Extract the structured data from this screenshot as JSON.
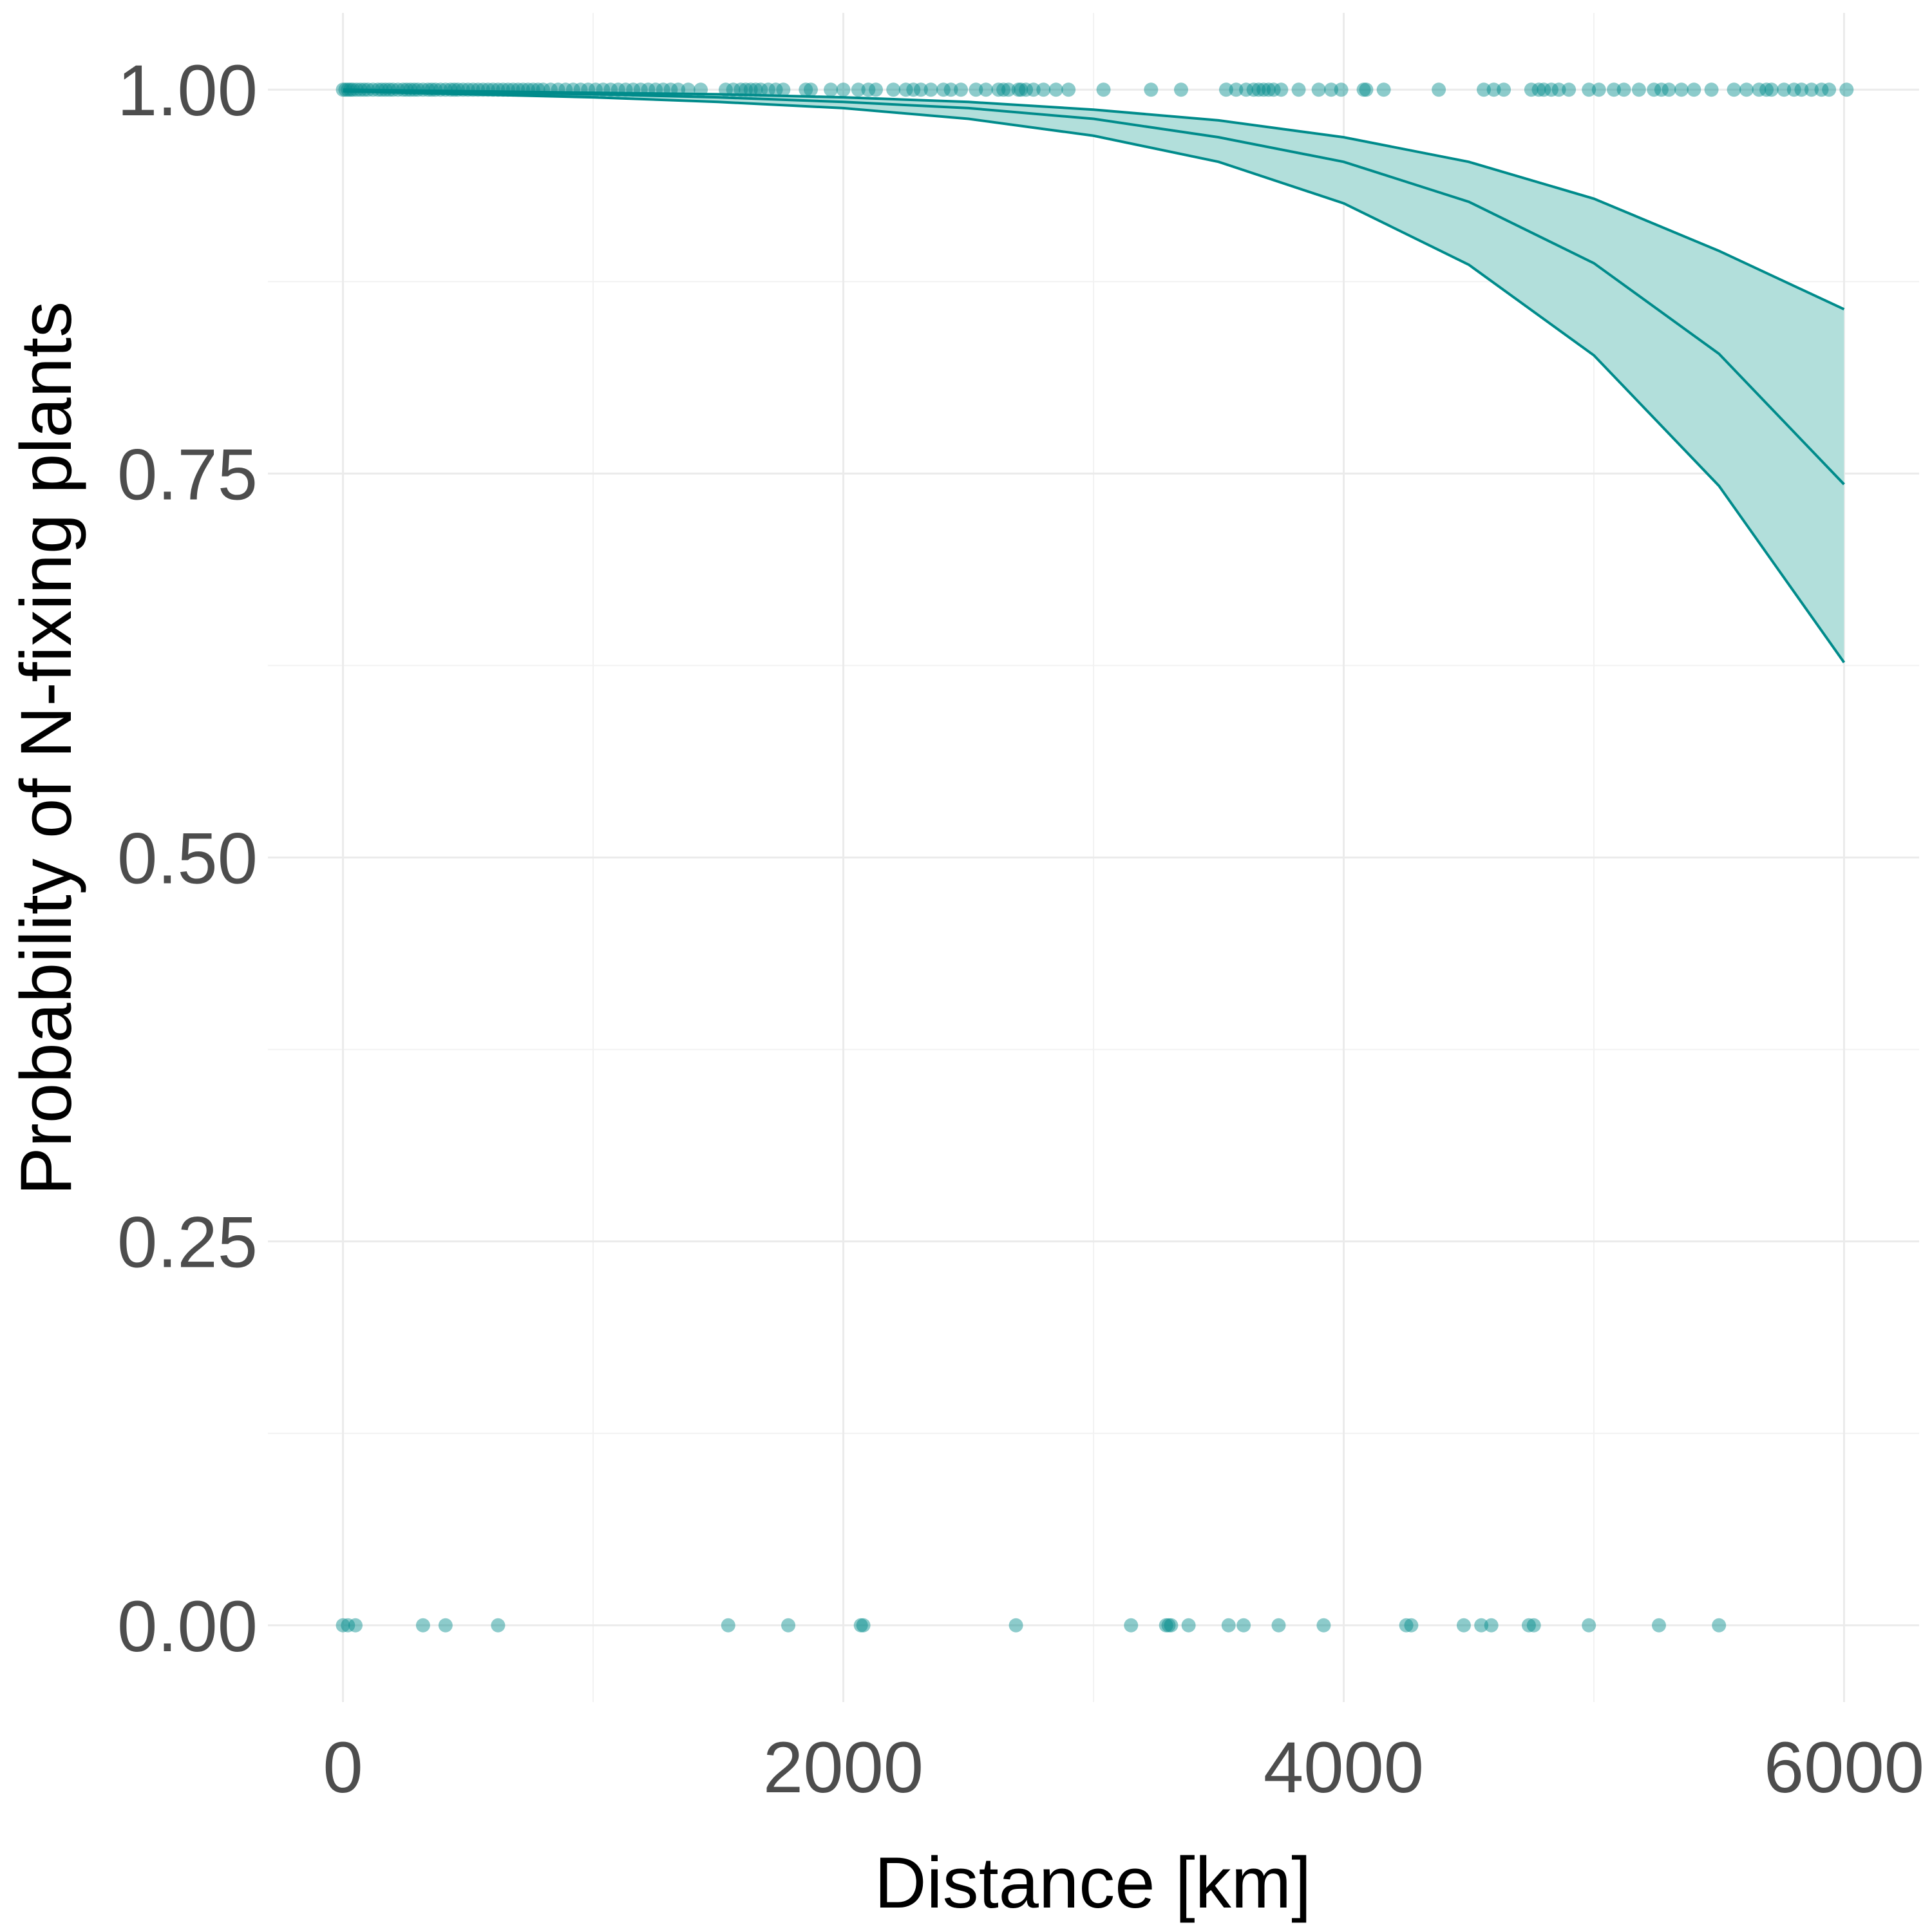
{
  "chart_data": {
    "type": "scatter",
    "xlabel": "Distance [km]",
    "ylabel": "Probability of N-fixing plants",
    "xlim": [
      -300,
      6300
    ],
    "ylim": [
      -0.05,
      1.05
    ],
    "x_ticks": [
      0,
      2000,
      4000,
      6000
    ],
    "y_ticks": [
      0.0,
      0.25,
      0.5,
      0.75,
      1.0
    ],
    "x_tick_labels": [
      "0",
      "2000",
      "4000",
      "6000"
    ],
    "y_tick_labels": [
      "0.00",
      "0.25",
      "0.50",
      "0.75",
      "1.00"
    ],
    "grid": true,
    "legend": "none",
    "colors": {
      "series": "#008b8b",
      "ribbon": "#b2dfdb",
      "grid": "#ebebeb",
      "tick_text": "#4d4d4d"
    },
    "points_y1": [
      0,
      10,
      20,
      30,
      40,
      55,
      70,
      85,
      100,
      120,
      140,
      155,
      170,
      185,
      200,
      220,
      240,
      255,
      270,
      285,
      300,
      320,
      340,
      355,
      370,
      390,
      410,
      430,
      445,
      460,
      480,
      500,
      520,
      540,
      560,
      580,
      600,
      620,
      640,
      660,
      680,
      700,
      720,
      740,
      760,
      780,
      800,
      830,
      860,
      890,
      920,
      950,
      980,
      1010,
      1040,
      1070,
      1100,
      1130,
      1160,
      1190,
      1220,
      1250,
      1280,
      1310,
      1340,
      1380,
      1430,
      1530,
      1560,
      1590,
      1610,
      1630,
      1650,
      1670,
      1700,
      1730,
      1760,
      1850,
      1870,
      1950,
      2000,
      2060,
      2100,
      2130,
      2200,
      2250,
      2280,
      2310,
      2350,
      2400,
      2430,
      2470,
      2530,
      2570,
      2620,
      2640,
      2660,
      2700,
      2710,
      2730,
      2760,
      2800,
      2850,
      2900,
      3040,
      3230,
      3350,
      3530,
      3570,
      3610,
      3640,
      3660,
      3680,
      3700,
      3720,
      3750,
      3820,
      3900,
      3950,
      3990,
      4080,
      4090,
      4160,
      4380,
      4560,
      4600,
      4640,
      4750,
      4780,
      4800,
      4830,
      4860,
      4900,
      4980,
      5020,
      5080,
      5120,
      5180,
      5240,
      5270,
      5300,
      5350,
      5400,
      5470,
      5560,
      5610,
      5660,
      5690,
      5710,
      5760,
      5800,
      5830,
      5870,
      5910,
      5940,
      6010
    ],
    "points_y0": [
      0,
      20,
      50,
      320,
      410,
      620,
      1540,
      1780,
      2070,
      2080,
      2690,
      3150,
      3290,
      3300,
      3310,
      3380,
      3540,
      3600,
      3740,
      3920,
      4250,
      4270,
      4480,
      4550,
      4590,
      4740,
      4760,
      4980,
      5260,
      5500
    ],
    "fit": {
      "x": [
        0,
        500,
        1000,
        1500,
        2000,
        2500,
        3000,
        3500,
        4000,
        4500,
        5000,
        5500,
        6000
      ],
      "y": [
        0.999,
        0.998,
        0.997,
        0.995,
        0.992,
        0.988,
        0.981,
        0.969,
        0.953,
        0.927,
        0.887,
        0.828,
        0.743
      ],
      "lower": [
        0.999,
        0.997,
        0.995,
        0.992,
        0.988,
        0.981,
        0.97,
        0.953,
        0.926,
        0.886,
        0.827,
        0.742,
        0.627
      ],
      "upper": [
        1.0,
        0.999,
        0.998,
        0.997,
        0.995,
        0.992,
        0.987,
        0.98,
        0.969,
        0.953,
        0.929,
        0.895,
        0.857
      ]
    }
  }
}
